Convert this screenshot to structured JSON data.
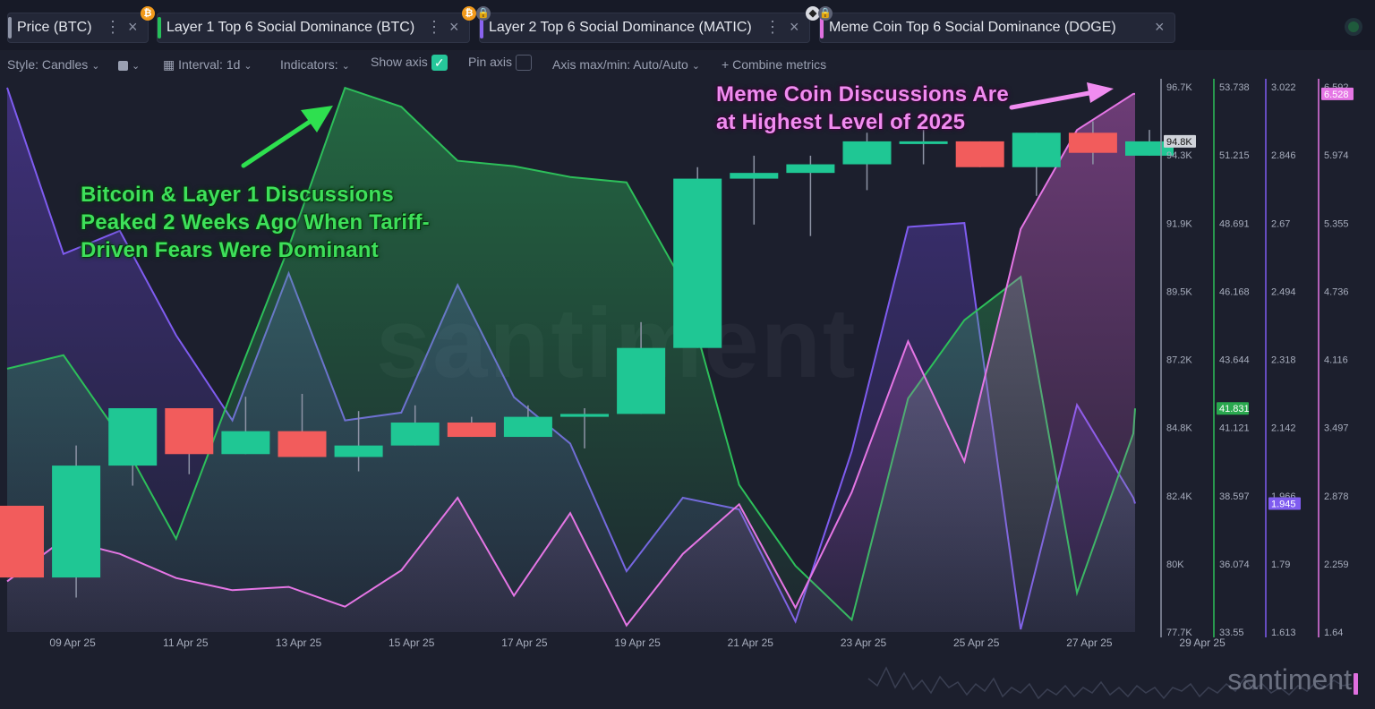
{
  "tabs": [
    {
      "label": "Price (BTC)",
      "color": "#8d93a5",
      "icon": "bitcoin-icon"
    },
    {
      "label": "Layer 1 Top 6 Social Dominance (BTC)",
      "color": "#26c05a",
      "icon": "bitcoin-lock-icon"
    },
    {
      "label": "Layer 2 Top 6 Social Dominance (MATIC)",
      "color": "#8a63f0",
      "icon": "ethereum-lock-icon"
    },
    {
      "label": "Meme Coin Top 6 Social Dominance (DOGE)",
      "color": "#e070e0",
      "icon": ""
    }
  ],
  "toolbar": {
    "style": "Style: Candles",
    "interval": "Interval: 1d",
    "indicators": "Indicators:",
    "show_axis": "Show axis",
    "pin_axis": "Pin axis",
    "axis_maxmin": "Axis max/min: Auto/Auto",
    "combine": "Combine metrics"
  },
  "annotations": {
    "green": [
      "Bitcoin & Layer 1 Discussions",
      "Peaked 2 Weeks Ago When Tariff-",
      "Driven Fears Were Dominant"
    ],
    "pink": [
      "Meme Coin Discussions Are",
      "at Highest Level of 2025"
    ]
  },
  "watermark": "santiment",
  "brand": "santiment",
  "colors": {
    "up": "#1fc794",
    "down": "#f25c5c",
    "layer1": "#2dbf5a",
    "layer2": "#7f5cf0",
    "meme": "#e576e5",
    "axis_price": "#8d93a5"
  },
  "chart_data": {
    "type": "candlestick",
    "x_labels": [
      "09 Apr 25",
      "11 Apr 25",
      "13 Apr 25",
      "15 Apr 25",
      "17 Apr 25",
      "19 Apr 25",
      "21 Apr 25",
      "23 Apr 25",
      "25 Apr 25",
      "27 Apr 25",
      "29 Apr 25"
    ],
    "price_axis": {
      "ticks": [
        "77.7K",
        "80K",
        "82.4K",
        "84.8K",
        "87.2K",
        "89.5K",
        "91.9K",
        "94.3K",
        "96.7K"
      ],
      "current": "94.8K",
      "ylim": [
        77700,
        96700
      ]
    },
    "layer1_axis": {
      "ticks": [
        "33.55",
        "36.074",
        "38.597",
        "41.121",
        "43.644",
        "46.168",
        "48.691",
        "51.215",
        "53.738"
      ],
      "current": "41.831",
      "ylim": [
        33.55,
        53.738
      ]
    },
    "layer2_axis": {
      "ticks": [
        "1.613",
        "1.79",
        "1.966",
        "2.142",
        "2.318",
        "2.494",
        "2.67",
        "2.846",
        "3.022"
      ],
      "current": "1.945",
      "ylim": [
        1.613,
        3.022
      ]
    },
    "meme_axis": {
      "ticks": [
        "1.64",
        "2.259",
        "2.878",
        "3.497",
        "4.116",
        "4.736",
        "5.355",
        "5.974",
        "6.592"
      ],
      "current": "6.528",
      "ylim": [
        1.64,
        6.592
      ]
    },
    "candles": [
      {
        "date": "08 Apr 25",
        "open": 82100,
        "close": 79600,
        "high": 82100,
        "low": 79600
      },
      {
        "date": "09 Apr 25",
        "open": 79600,
        "close": 83500,
        "high": 84200,
        "low": 78900
      },
      {
        "date": "10 Apr 25",
        "open": 83500,
        "close": 85500,
        "high": 85500,
        "low": 82800
      },
      {
        "date": "11 Apr 25",
        "open": 85500,
        "close": 83900,
        "high": 85500,
        "low": 83200
      },
      {
        "date": "12 Apr 25",
        "open": 83900,
        "close": 84700,
        "high": 85900,
        "low": 83900
      },
      {
        "date": "13 Apr 25",
        "open": 84700,
        "close": 83800,
        "high": 86000,
        "low": 83800
      },
      {
        "date": "14 Apr 25",
        "open": 83800,
        "close": 84200,
        "high": 85400,
        "low": 83300
      },
      {
        "date": "15 Apr 25",
        "open": 84200,
        "close": 85000,
        "high": 85600,
        "low": 84200
      },
      {
        "date": "16 Apr 25",
        "open": 85000,
        "close": 84500,
        "high": 85200,
        "low": 84500
      },
      {
        "date": "17 Apr 25",
        "open": 84500,
        "close": 85200,
        "high": 85600,
        "low": 84500
      },
      {
        "date": "18 Apr 25",
        "open": 85200,
        "close": 85300,
        "high": 85500,
        "low": 84100
      },
      {
        "date": "19 Apr 25",
        "open": 85300,
        "close": 87600,
        "high": 88500,
        "low": 85300
      },
      {
        "date": "20 Apr 25",
        "open": 87600,
        "close": 93500,
        "high": 93900,
        "low": 87600
      },
      {
        "date": "21 Apr 25",
        "open": 93500,
        "close": 93700,
        "high": 94300,
        "low": 91900
      },
      {
        "date": "22 Apr 25",
        "open": 93700,
        "close": 94000,
        "high": 94300,
        "low": 91500
      },
      {
        "date": "23 Apr 25",
        "open": 94000,
        "close": 94800,
        "high": 95100,
        "low": 93100
      },
      {
        "date": "24 Apr 25",
        "open": 94800,
        "close": 94800,
        "high": 95400,
        "low": 94000
      },
      {
        "date": "25 Apr 25",
        "open": 94800,
        "close": 93900,
        "high": 94800,
        "low": 93900
      },
      {
        "date": "26 Apr 25",
        "open": 93900,
        "close": 95100,
        "high": 95100,
        "low": 92900
      },
      {
        "date": "27 Apr 25",
        "open": 95100,
        "close": 94400,
        "high": 95500,
        "low": 94000
      },
      {
        "date": "28 Apr 25",
        "open": 94300,
        "close": 94800,
        "high": 95200,
        "low": 94300
      }
    ],
    "series": [
      {
        "name": "Layer 1 Top 6 Social Dominance (BTC)",
        "values": [
          43.3,
          43.8,
          40.8,
          37.0,
          42.5,
          47.8,
          53.7,
          53.0,
          51.0,
          50.8,
          50.4,
          50.2,
          46.5,
          39.0,
          36.0,
          34.0,
          42.2,
          45.1,
          46.7,
          35.0,
          40.9,
          41.83
        ]
      },
      {
        "name": "Layer 2 Top 6 Social Dominance (MATIC)",
        "values": [
          3.02,
          2.59,
          2.65,
          2.38,
          2.16,
          2.54,
          2.16,
          2.18,
          2.51,
          2.22,
          2.1,
          1.77,
          1.96,
          1.93,
          1.64,
          2.08,
          2.66,
          2.67,
          1.62,
          2.2,
          1.96,
          1.945
        ]
      },
      {
        "name": "Meme Coin Top 6 Social Dominance (DOGE)",
        "values": [
          2.1,
          2.48,
          2.35,
          2.13,
          2.02,
          2.05,
          1.87,
          2.2,
          2.86,
          1.97,
          2.72,
          1.7,
          2.35,
          2.8,
          1.86,
          2.91,
          4.28,
          3.19,
          5.3,
          6.2,
          6.528,
          6.528
        ]
      }
    ]
  }
}
